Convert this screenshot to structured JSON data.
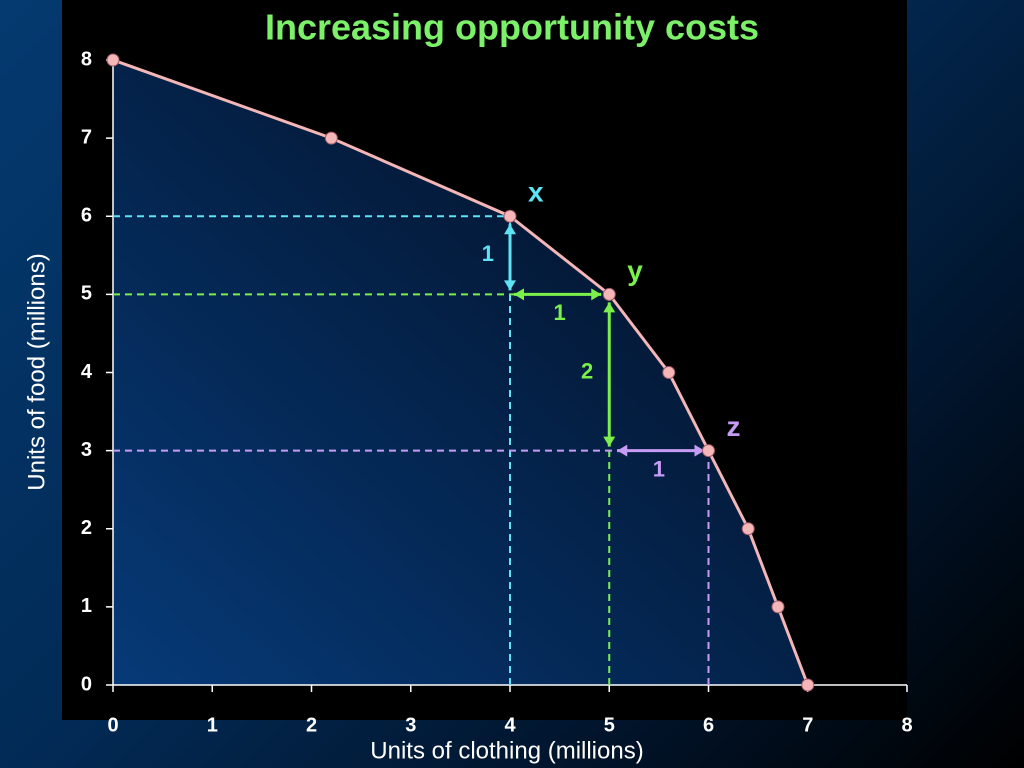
{
  "chart_data": {
    "type": "line",
    "title": "Increasing opportunity costs",
    "x_label": "Units of clothing (millions)",
    "y_label": "Units of food (millions)",
    "x": [
      0,
      2.2,
      4,
      5,
      5.6,
      6,
      6.4,
      6.7,
      7
    ],
    "series": [
      {
        "color": "#f4b6b6",
        "values": [
          8,
          7,
          6,
          5,
          4,
          3,
          2,
          1,
          0
        ]
      }
    ],
    "xlim": [
      0,
      8
    ],
    "ylim": [
      0,
      8
    ],
    "xticks": [
      0,
      1,
      2,
      3,
      4,
      5,
      6,
      7,
      8
    ],
    "yticks": [
      0,
      1,
      2,
      3,
      4,
      5,
      6,
      7,
      8
    ],
    "highlights": [
      {
        "label": "x",
        "x": 4,
        "y": 6,
        "color": "#5ee3f5"
      },
      {
        "label": "y",
        "x": 5,
        "y": 5,
        "color": "#7cf04a"
      },
      {
        "label": "z",
        "x": 6,
        "y": 3,
        "color": "#c79cf5"
      }
    ],
    "arrows": [
      {
        "x": [
          4,
          4
        ],
        "y": [
          6,
          5
        ],
        "label": 1,
        "color": "#5ee3f5"
      },
      {
        "x": [
          5,
          4
        ],
        "y": [
          5,
          5
        ],
        "label": 1,
        "color": "#7cf04a"
      },
      {
        "x": [
          5,
          5
        ],
        "y": [
          5,
          3
        ],
        "label": 2,
        "color": "#7cf04a"
      },
      {
        "x": [
          5,
          6
        ],
        "y": [
          3,
          3
        ],
        "label": 1,
        "color": "#c79cf5"
      }
    ]
  }
}
